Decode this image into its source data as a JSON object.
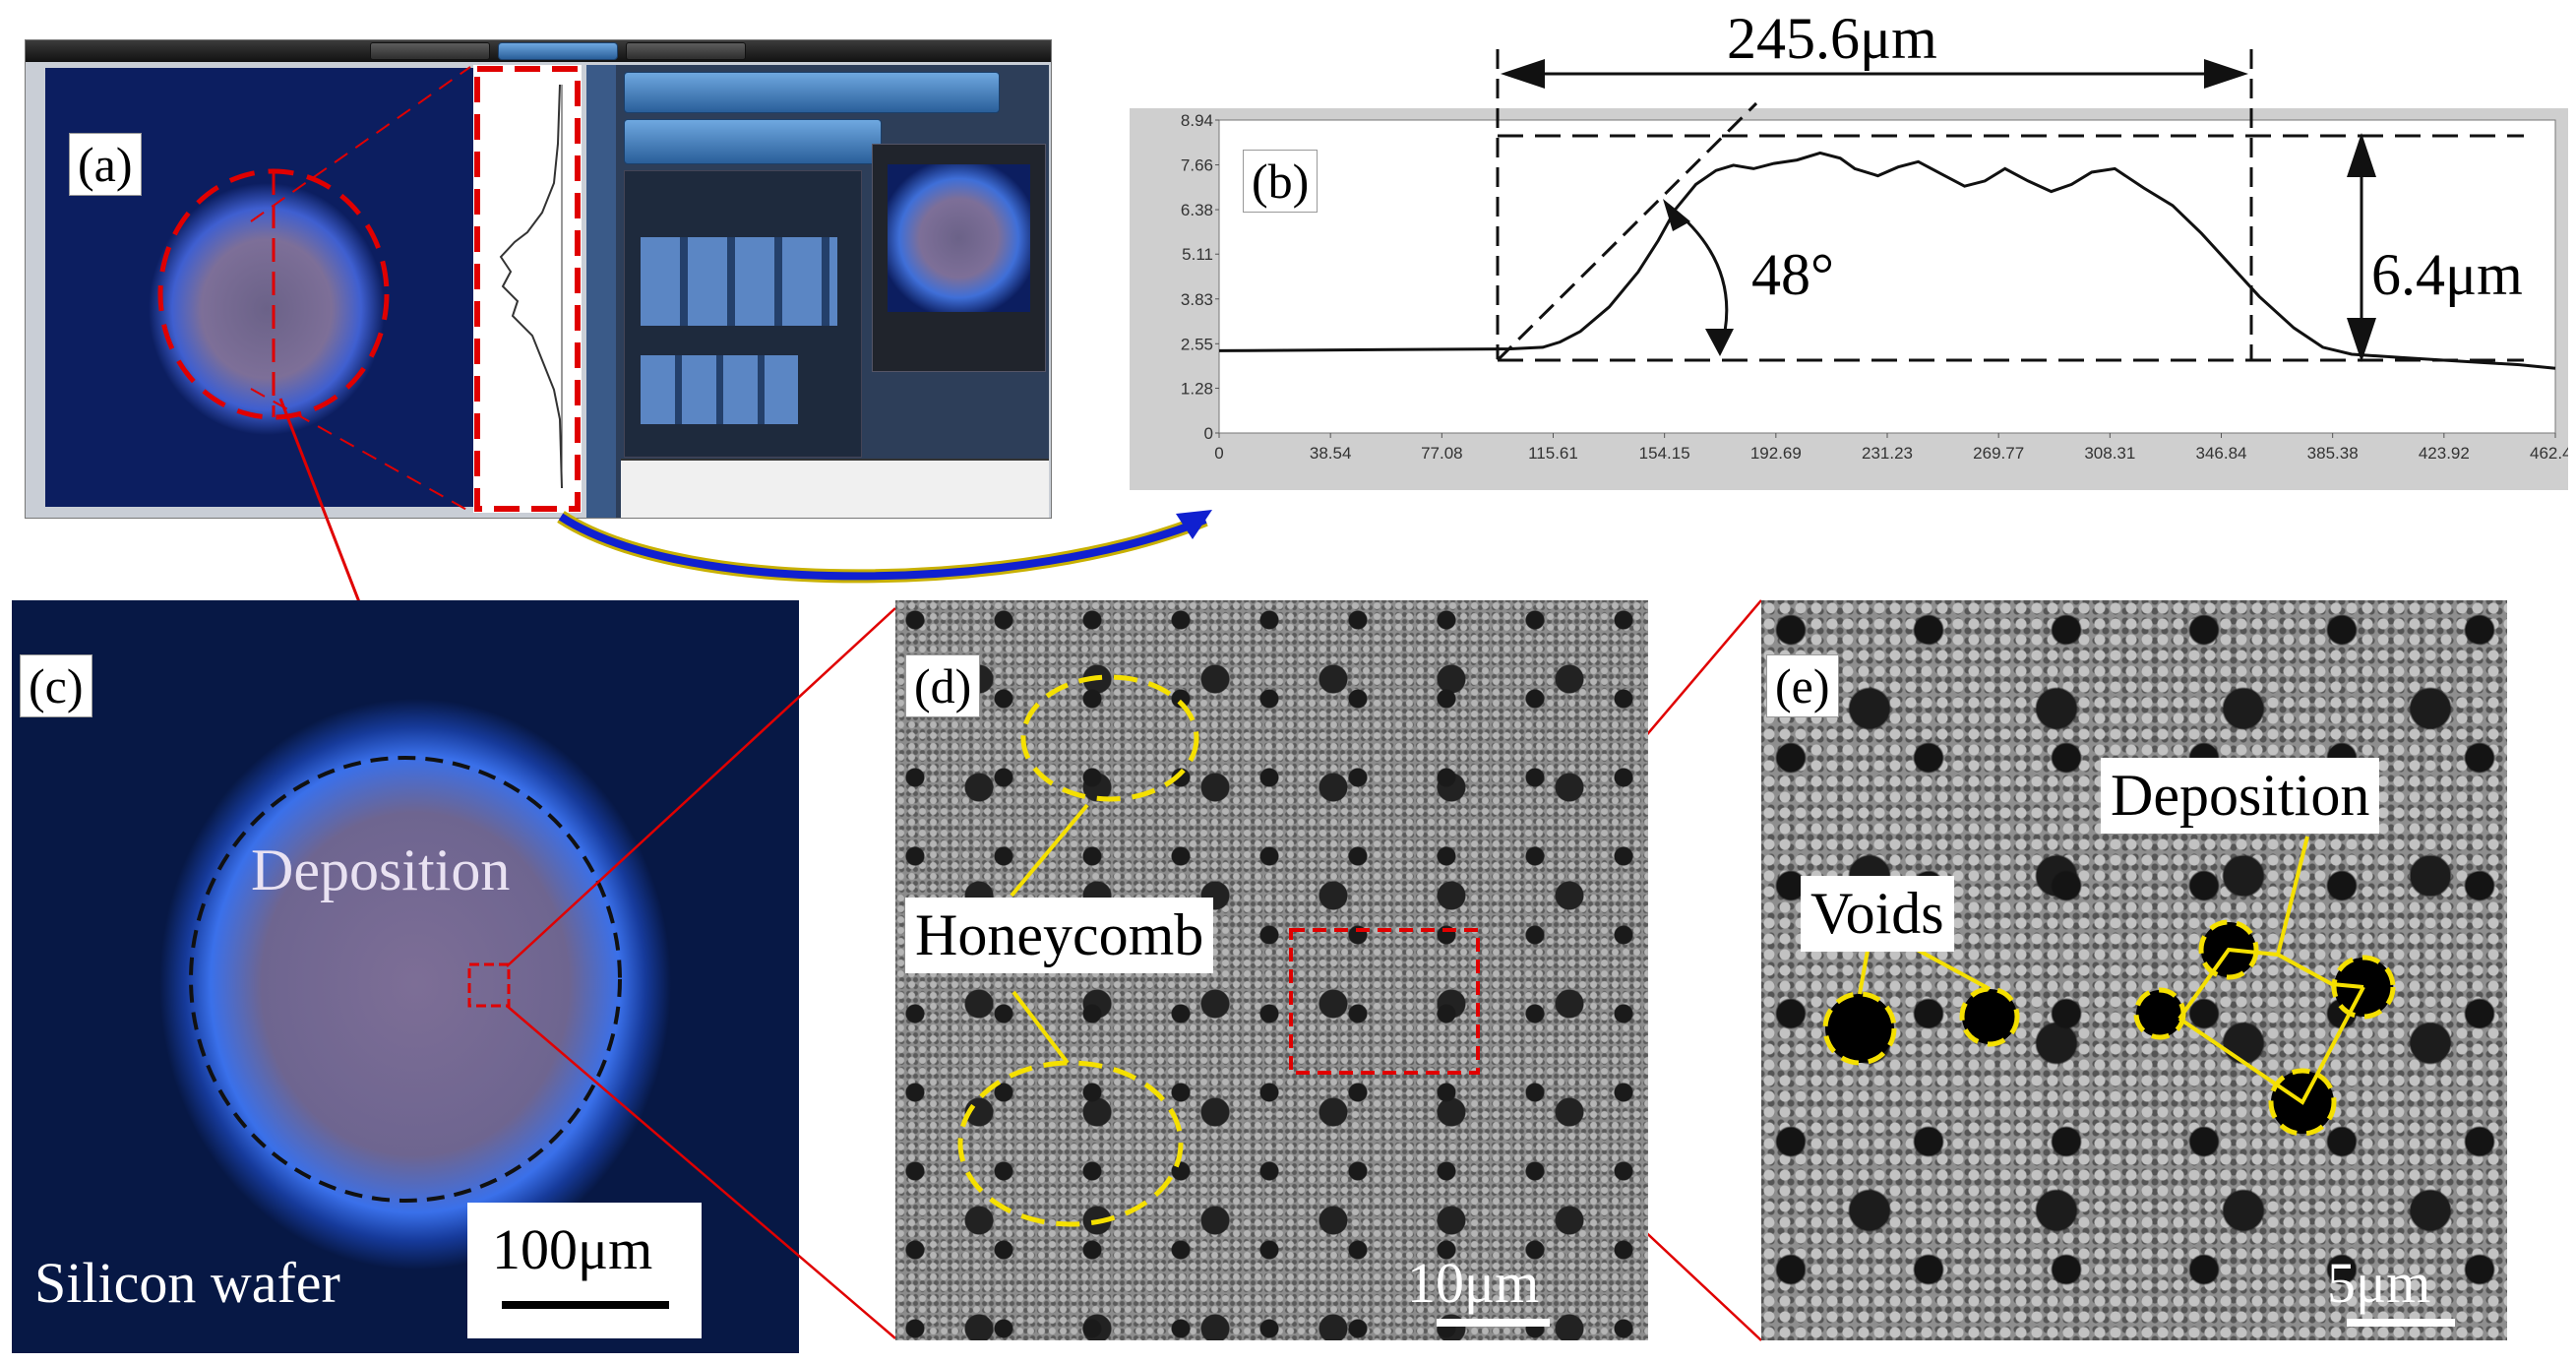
{
  "panels": {
    "a": {
      "label": "(a)"
    },
    "b": {
      "label": "(b)"
    },
    "c": {
      "label": "(c)",
      "deposition_text": "Deposition",
      "substrate_text": "Silicon wafer",
      "scale_bar": "100μm"
    },
    "d": {
      "label": "(d)",
      "callout": "Honeycomb",
      "scale_bar": "10μm"
    },
    "e": {
      "label": "(e)",
      "callout_voids": "Voids",
      "callout_deposition": "Deposition",
      "scale_bar": "5μm"
    }
  },
  "annotations": {
    "width": "245.6μm",
    "height": "6.4μm",
    "angle": "48°"
  },
  "chart_data": {
    "type": "line",
    "title": "",
    "xlabel": "",
    "ylabel": "",
    "x_ticks": [
      "0",
      "38.54",
      "77.08",
      "115.61",
      "154.15",
      "192.69",
      "231.23",
      "269.77",
      "308.31",
      "346.84",
      "385.38",
      "423.92",
      "462.46"
    ],
    "y_ticks": [
      "0",
      "1.28",
      "2.55",
      "3.83",
      "5.11",
      "6.38",
      "7.66",
      "8.94"
    ],
    "xlim": [
      0,
      462.46
    ],
    "ylim": [
      0,
      8.94
    ],
    "series": [
      {
        "x": [
          0,
          60,
          100,
          112,
          118,
          125,
          135,
          145,
          152,
          158,
          165,
          172,
          178,
          185,
          192,
          200,
          208,
          215,
          220,
          228,
          235,
          242,
          250,
          258,
          265,
          272,
          280,
          288,
          295,
          302,
          310,
          320,
          330,
          340,
          350,
          360,
          372,
          382,
          392,
          410,
          430,
          450,
          462.46
        ],
        "y": [
          2.35,
          2.38,
          2.4,
          2.45,
          2.6,
          2.9,
          3.6,
          4.6,
          5.5,
          6.4,
          7.1,
          7.5,
          7.65,
          7.55,
          7.7,
          7.8,
          8.0,
          7.85,
          7.55,
          7.35,
          7.6,
          7.75,
          7.4,
          7.05,
          7.2,
          7.55,
          7.2,
          6.9,
          7.1,
          7.45,
          7.55,
          7.0,
          6.5,
          5.7,
          4.8,
          3.9,
          3.0,
          2.45,
          2.25,
          2.15,
          2.05,
          1.95,
          1.85
        ]
      }
    ]
  },
  "colors": {
    "dashed_red": "#e00000",
    "callout_line": "#f5e000",
    "arrow_blue": "#1020d0",
    "arrow_yellow": "#c8b000",
    "sem_gray": "#8a8a8a",
    "dark_blue": "#0a1f55",
    "glow_blue": "#2d6ff0",
    "deposit_pink": "#8a7aa8"
  }
}
